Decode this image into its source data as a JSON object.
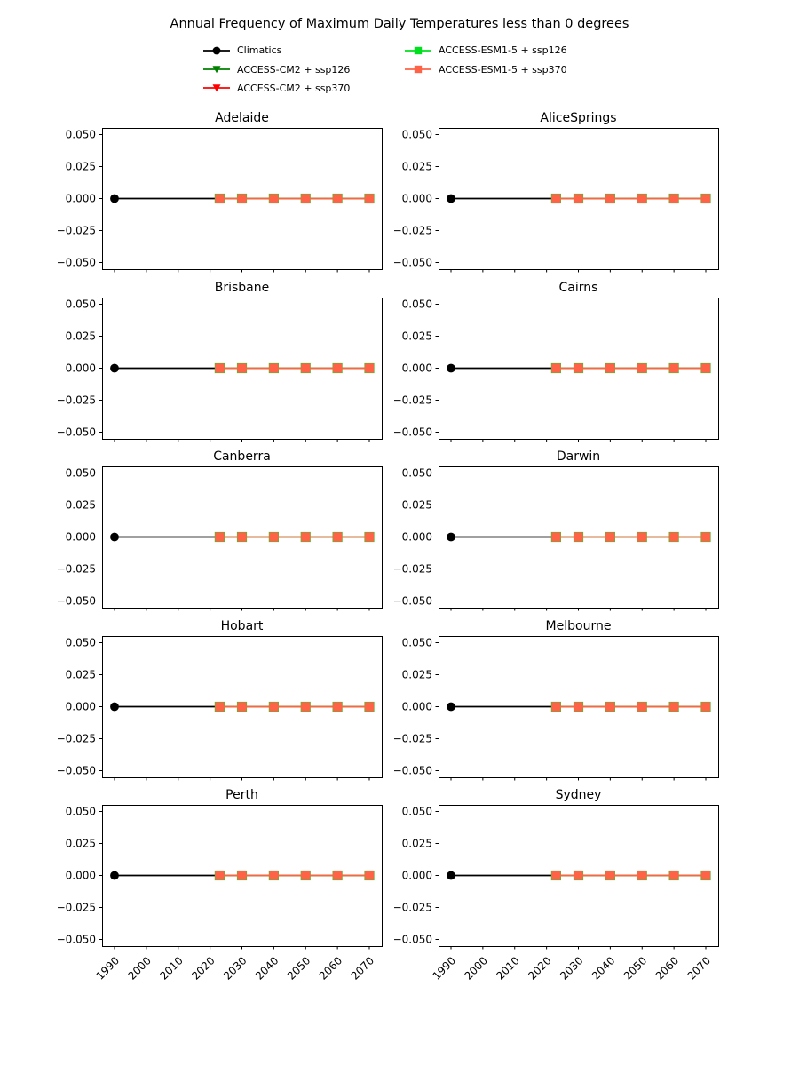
{
  "figure": {
    "title": "Annual Frequency of Maximum Daily Temperatures less than 0 degrees",
    "background_color": "#ffffff"
  },
  "legend": {
    "items": [
      {
        "label": "Climatics",
        "marker": "circle",
        "color": "#000000"
      },
      {
        "label": "ACCESS-CM2 + ssp126",
        "marker": "triangle-down",
        "color": "#008000"
      },
      {
        "label": "ACCESS-CM2 + ssp370",
        "marker": "triangle-down",
        "color": "#ff0000"
      },
      {
        "label": "ACCESS-ESM1-5 + ssp126",
        "marker": "square",
        "color": "#00e01e"
      },
      {
        "label": "ACCESS-ESM1-5 + ssp370",
        "marker": "square",
        "color": "#ff6347"
      }
    ]
  },
  "chart_data": {
    "type": "line",
    "title": "Annual Frequency of Maximum Daily Temperatures less than 0 degrees",
    "layout": {
      "rows": 5,
      "cols": 2
    },
    "grid": "off",
    "legend_position": "top-center, two columns",
    "subplots": [
      "Adelaide",
      "AliceSprings",
      "Brisbane",
      "Cairns",
      "Canberra",
      "Darwin",
      "Hobart",
      "Melbourne",
      "Perth",
      "Sydney"
    ],
    "xlabel": "",
    "ylabel": "",
    "x_ticks": [
      1990,
      2000,
      2010,
      2020,
      2030,
      2040,
      2050,
      2060,
      2070
    ],
    "x_tick_labels": [
      "1990",
      "2000",
      "2010",
      "2020",
      "2030",
      "2040",
      "2050",
      "2060",
      "2070"
    ],
    "x_tick_rotation": 45,
    "y_ticks": [
      0.05,
      0.025,
      0.0,
      -0.025,
      -0.05
    ],
    "y_tick_labels": [
      "0.050",
      "0.025",
      "0.000",
      "−0.025",
      "−0.050"
    ],
    "xlim": [
      1986.1,
      2073.9
    ],
    "ylim": [
      -0.0552,
      0.0552
    ],
    "series": [
      {
        "name": "Climatics",
        "color": "#000000",
        "marker": "circle",
        "x": [
          1990,
          2023
        ],
        "y": [
          0,
          0
        ]
      },
      {
        "name": "ACCESS-CM2 + ssp126",
        "color": "#008000",
        "marker": "triangle-down",
        "x": [
          2023,
          2030,
          2040,
          2050,
          2060,
          2070
        ],
        "y": [
          0,
          0,
          0,
          0,
          0,
          0
        ]
      },
      {
        "name": "ACCESS-CM2 + ssp370",
        "color": "#ff0000",
        "marker": "triangle-down",
        "x": [
          2023,
          2030,
          2040,
          2050,
          2060,
          2070
        ],
        "y": [
          0,
          0,
          0,
          0,
          0,
          0
        ]
      },
      {
        "name": "ACCESS-ESM1-5 + ssp126",
        "color": "#00e01e",
        "marker": "square",
        "x": [
          2023,
          2030,
          2040,
          2050,
          2060,
          2070
        ],
        "y": [
          0,
          0,
          0,
          0,
          0,
          0
        ]
      },
      {
        "name": "ACCESS-ESM1-5 + ssp370",
        "color": "#ff6347",
        "marker": "square",
        "x": [
          2023,
          2030,
          2040,
          2050,
          2060,
          2070
        ],
        "y": [
          0,
          0,
          0,
          0,
          0,
          0
        ]
      }
    ],
    "note": "All ten city subplots show identical content: every series is constant at 0; the model series overlap so only the last-drawn (ACCESS-ESM1-5 + ssp370, tomato) is visible on top of the black Climatics line."
  }
}
